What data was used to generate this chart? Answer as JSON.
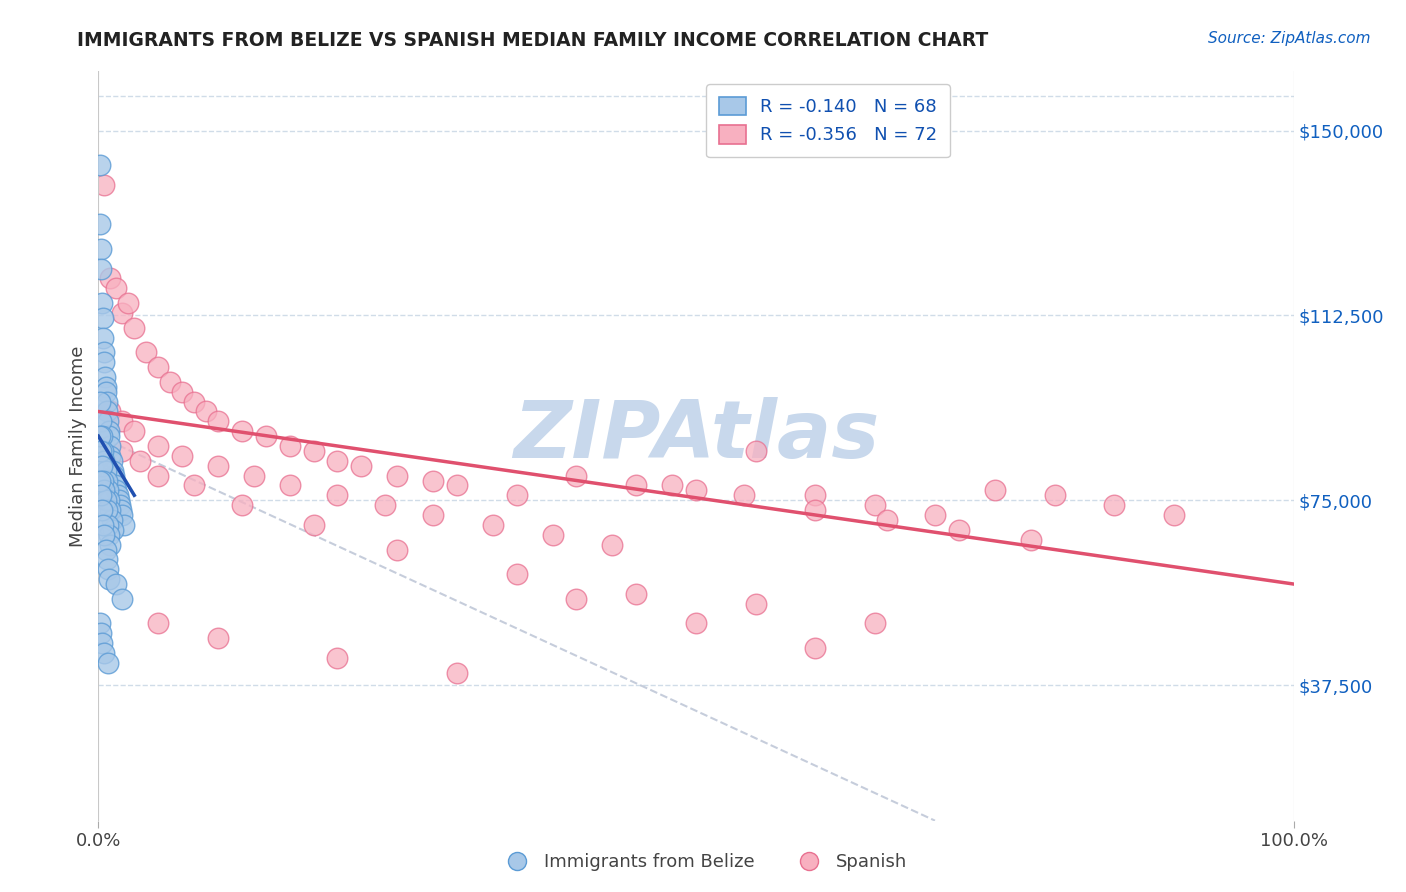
{
  "title": "IMMIGRANTS FROM BELIZE VS SPANISH MEDIAN FAMILY INCOME CORRELATION CHART",
  "source": "Source: ZipAtlas.com",
  "ylabel": "Median Family Income",
  "y_ticks": [
    37500,
    75000,
    112500,
    150000
  ],
  "y_tick_labels": [
    "$37,500",
    "$75,000",
    "$112,500",
    "$150,000"
  ],
  "x_min": 0.0,
  "x_max": 100.0,
  "y_min": 10000,
  "y_max": 162000,
  "blue_R": -0.14,
  "blue_N": 68,
  "pink_R": -0.356,
  "pink_N": 72,
  "blue_color": "#a8c8e8",
  "pink_color": "#f8b0c0",
  "blue_edge": "#5b9bd5",
  "pink_edge": "#e87090",
  "trend_blue": "#2050b0",
  "trend_pink": "#e0506e",
  "trend_dashed_color": "#c0c8d8",
  "watermark_color": "#c8d8ec",
  "legend_text_color": "#1050b0",
  "title_color": "#222222",
  "background": "#ffffff",
  "blue_scatter_x": [
    0.1,
    0.15,
    0.2,
    0.25,
    0.3,
    0.35,
    0.4,
    0.45,
    0.5,
    0.55,
    0.6,
    0.65,
    0.7,
    0.75,
    0.8,
    0.85,
    0.9,
    0.95,
    1.0,
    1.1,
    1.2,
    1.3,
    1.4,
    1.5,
    1.6,
    1.7,
    1.8,
    1.9,
    2.0,
    2.1,
    0.1,
    0.2,
    0.3,
    0.4,
    0.5,
    0.6,
    0.7,
    0.8,
    0.9,
    1.0,
    1.1,
    1.2,
    0.1,
    0.2,
    0.3,
    0.4,
    0.5,
    0.6,
    0.7,
    0.8,
    0.9,
    1.0,
    0.1,
    0.2,
    0.3,
    0.4,
    0.5,
    0.6,
    0.7,
    0.8,
    0.9,
    1.5,
    2.0,
    0.1,
    0.2,
    0.3,
    0.5,
    0.8
  ],
  "blue_scatter_y": [
    143000,
    131000,
    126000,
    122000,
    115000,
    112000,
    108000,
    105000,
    103000,
    100000,
    98000,
    97000,
    95000,
    93000,
    91000,
    89000,
    88000,
    86000,
    84000,
    83000,
    81000,
    80000,
    78000,
    77000,
    76000,
    75000,
    74000,
    73000,
    72000,
    70000,
    95000,
    91000,
    88000,
    85000,
    83000,
    81000,
    79000,
    77000,
    75000,
    73000,
    71000,
    69000,
    88000,
    85000,
    82000,
    79000,
    77000,
    75000,
    73000,
    70000,
    68000,
    66000,
    79000,
    76000,
    73000,
    70000,
    68000,
    65000,
    63000,
    61000,
    59000,
    58000,
    55000,
    50000,
    48000,
    46000,
    44000,
    42000
  ],
  "pink_scatter_x": [
    0.5,
    1.0,
    1.5,
    2.0,
    2.5,
    3.0,
    4.0,
    5.0,
    6.0,
    7.0,
    8.0,
    9.0,
    10.0,
    12.0,
    14.0,
    16.0,
    18.0,
    20.0,
    22.0,
    25.0,
    28.0,
    30.0,
    35.0,
    40.0,
    45.0,
    50.0,
    55.0,
    60.0,
    65.0,
    70.0,
    75.0,
    80.0,
    85.0,
    90.0,
    1.0,
    2.0,
    3.0,
    5.0,
    7.0,
    10.0,
    13.0,
    16.0,
    20.0,
    24.0,
    28.0,
    33.0,
    38.0,
    43.0,
    48.0,
    54.0,
    60.0,
    66.0,
    72.0,
    78.0,
    2.0,
    3.5,
    5.0,
    8.0,
    12.0,
    18.0,
    25.0,
    35.0,
    45.0,
    55.0,
    65.0,
    5.0,
    10.0,
    20.0,
    30.0,
    40.0,
    50.0,
    60.0
  ],
  "pink_scatter_y": [
    139000,
    120000,
    118000,
    113000,
    115000,
    110000,
    105000,
    102000,
    99000,
    97000,
    95000,
    93000,
    91000,
    89000,
    88000,
    86000,
    85000,
    83000,
    82000,
    80000,
    79000,
    78000,
    76000,
    80000,
    78000,
    77000,
    85000,
    76000,
    74000,
    72000,
    77000,
    76000,
    74000,
    72000,
    93000,
    91000,
    89000,
    86000,
    84000,
    82000,
    80000,
    78000,
    76000,
    74000,
    72000,
    70000,
    68000,
    66000,
    78000,
    76000,
    73000,
    71000,
    69000,
    67000,
    85000,
    83000,
    80000,
    78000,
    74000,
    70000,
    65000,
    60000,
    56000,
    54000,
    50000,
    50000,
    47000,
    43000,
    40000,
    55000,
    50000,
    45000
  ],
  "blue_trend_x0": 0.0,
  "blue_trend_y0": 88000,
  "blue_trend_x1": 3.0,
  "blue_trend_y1": 76000,
  "pink_trend_x0": 0.0,
  "pink_trend_y0": 93000,
  "pink_trend_x1": 100.0,
  "pink_trend_y1": 58000,
  "dash_x0": 0.0,
  "dash_y0": 88000,
  "dash_x1": 70.0,
  "dash_y1": 10000
}
